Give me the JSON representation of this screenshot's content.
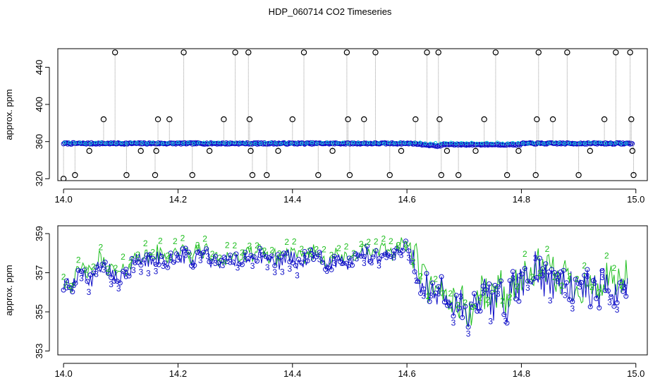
{
  "title": "HDP_060714  CO2 Timeseries",
  "colors": {
    "grey": "#9a9a9a",
    "blue": "#1010c8",
    "green": "#1fbf1f",
    "cyan": "#00d8d8",
    "black": "#000000"
  },
  "chart_data": [
    {
      "type": "scatter",
      "title": "",
      "xlabel": "",
      "ylabel": "approx. ppm",
      "xlim": [
        13.99,
        15.02
      ],
      "ylim": [
        318,
        460
      ],
      "xticks": [
        14.0,
        14.2,
        14.4,
        14.6,
        14.8,
        15.0
      ],
      "xtick_labels": [
        "14.0",
        "14.2",
        "14.4",
        "14.6",
        "14.8",
        "15.0"
      ],
      "yticks": [
        320,
        360,
        400,
        440
      ],
      "ytick_labels": [
        "320",
        "360",
        "400",
        "440"
      ],
      "grid": false,
      "legend": "none",
      "series": [
        {
          "marker": "circle",
          "x": [
            14.0,
            14.02,
            14.045,
            14.07,
            14.09,
            14.11,
            14.135,
            14.16,
            14.162,
            14.165,
            14.185,
            14.21,
            14.225,
            14.255,
            14.28,
            14.3,
            14.323,
            14.325,
            14.327,
            14.33,
            14.355,
            14.375,
            14.4,
            14.42,
            14.445,
            14.47,
            14.495,
            14.497,
            14.5,
            14.525,
            14.545,
            14.57,
            14.59,
            14.615,
            14.635,
            14.655,
            14.657,
            14.66,
            14.67,
            14.69,
            14.72,
            14.735,
            14.755,
            14.775,
            14.795,
            14.825,
            14.827,
            14.83,
            14.855,
            14.88,
            14.9,
            14.92,
            14.945,
            14.965,
            14.99,
            14.992,
            14.994,
            14.996
          ],
          "y": [
            320,
            324,
            350,
            384,
            456,
            324,
            350,
            324,
            350,
            384,
            384,
            456,
            324,
            350,
            384,
            456,
            456,
            384,
            350,
            324,
            324,
            350,
            384,
            456,
            324,
            350,
            456,
            384,
            324,
            384,
            456,
            324,
            350,
            384,
            456,
            456,
            384,
            324,
            350,
            324,
            350,
            384,
            456,
            324,
            350,
            324,
            384,
            456,
            384,
            456,
            324,
            350,
            384,
            456,
            456,
            384,
            350,
            324
          ]
        }
      ]
    },
    {
      "type": "line",
      "title": "",
      "xlabel": "",
      "ylabel": "approx. ppm",
      "xlim": [
        13.99,
        15.02
      ],
      "ylim": [
        352.8,
        359.4
      ],
      "xticks": [
        14.0,
        14.2,
        14.4,
        14.6,
        14.8,
        15.0
      ],
      "xtick_labels": [
        "14.0",
        "14.2",
        "14.4",
        "14.6",
        "14.8",
        "15.0"
      ],
      "yticks": [
        353,
        355,
        357,
        359
      ],
      "ytick_labels": [
        "353",
        "355",
        "357",
        "359"
      ],
      "grid": false,
      "legend": "none",
      "series": [
        {
          "marker": "2",
          "values_from": "green line"
        },
        {
          "marker": "3",
          "values_from": "blue line"
        }
      ],
      "curve_points": [
        [
          14.0,
          356.5
        ],
        [
          14.012,
          356.2
        ],
        [
          14.025,
          356.8
        ],
        [
          14.037,
          357.1
        ],
        [
          14.05,
          356.6
        ],
        [
          14.062,
          357.6
        ],
        [
          14.075,
          357.2
        ],
        [
          14.087,
          356.9
        ],
        [
          14.1,
          356.7
        ],
        [
          14.112,
          357.2
        ],
        [
          14.125,
          357.6
        ],
        [
          14.137,
          357.8
        ],
        [
          14.15,
          357.5
        ],
        [
          14.162,
          357.9
        ],
        [
          14.175,
          357.6
        ],
        [
          14.187,
          357.8
        ],
        [
          14.2,
          358.0
        ],
        [
          14.212,
          357.9
        ],
        [
          14.225,
          357.6
        ],
        [
          14.237,
          358.1
        ],
        [
          14.25,
          357.9
        ],
        [
          14.262,
          357.6
        ],
        [
          14.275,
          357.4
        ],
        [
          14.287,
          357.8
        ],
        [
          14.3,
          357.7
        ],
        [
          14.312,
          357.6
        ],
        [
          14.325,
          357.8
        ],
        [
          14.337,
          357.9
        ],
        [
          14.35,
          357.8
        ],
        [
          14.362,
          357.7
        ],
        [
          14.375,
          357.6
        ],
        [
          14.387,
          357.9
        ],
        [
          14.4,
          357.8
        ],
        [
          14.412,
          357.5
        ],
        [
          14.425,
          357.8
        ],
        [
          14.437,
          357.9
        ],
        [
          14.45,
          357.7
        ],
        [
          14.462,
          357.5
        ],
        [
          14.475,
          357.7
        ],
        [
          14.487,
          357.6
        ],
        [
          14.5,
          357.4
        ],
        [
          14.512,
          357.9
        ],
        [
          14.525,
          358.1
        ],
        [
          14.537,
          357.8
        ],
        [
          14.55,
          357.9
        ],
        [
          14.562,
          358.0
        ],
        [
          14.575,
          357.9
        ],
        [
          14.587,
          358.2
        ],
        [
          14.6,
          358.3
        ],
        [
          14.612,
          357.7
        ],
        [
          14.625,
          356.8
        ],
        [
          14.637,
          356.1
        ],
        [
          14.65,
          355.4
        ],
        [
          14.662,
          356.0
        ],
        [
          14.675,
          355.6
        ],
        [
          14.687,
          355.4
        ],
        [
          14.7,
          355.2
        ],
        [
          14.712,
          354.6
        ],
        [
          14.725,
          355.7
        ],
        [
          14.737,
          355.9
        ],
        [
          14.75,
          355.4
        ],
        [
          14.762,
          356.4
        ],
        [
          14.775,
          355.3
        ],
        [
          14.787,
          356.3
        ],
        [
          14.8,
          356.6
        ],
        [
          14.812,
          356.4
        ],
        [
          14.825,
          357.3
        ],
        [
          14.837,
          356.8
        ],
        [
          14.85,
          356.9
        ],
        [
          14.862,
          356.4
        ],
        [
          14.875,
          356.8
        ],
        [
          14.887,
          356.3
        ],
        [
          14.9,
          356.1
        ],
        [
          14.912,
          356.4
        ],
        [
          14.925,
          355.9
        ],
        [
          14.937,
          356.2
        ],
        [
          14.95,
          356.4
        ],
        [
          14.962,
          356.1
        ],
        [
          14.975,
          356.4
        ],
        [
          14.985,
          356.6
        ]
      ]
    }
  ]
}
